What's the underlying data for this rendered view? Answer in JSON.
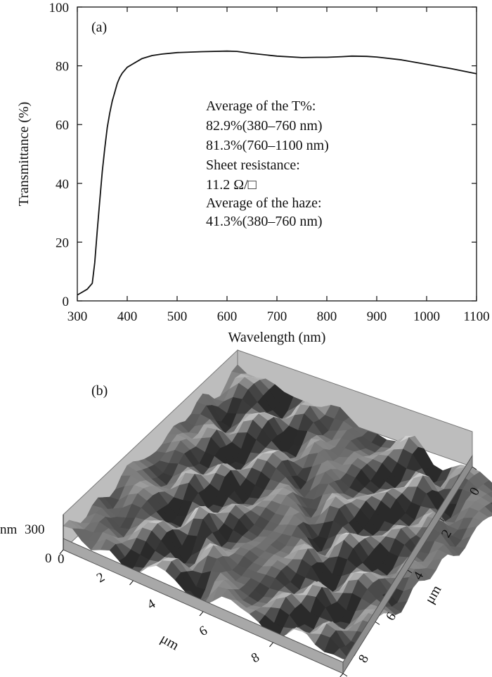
{
  "chart_data": [
    {
      "type": "line",
      "panel_label": "(a)",
      "xlabel": "Wavelength (nm)",
      "ylabel": "Transmittance (%)",
      "xlim": [
        300,
        1100
      ],
      "ylim": [
        0,
        100
      ],
      "x_ticks": [
        "300",
        "400",
        "500",
        "600",
        "700",
        "800",
        "900",
        "1000",
        "1100"
      ],
      "y_ticks": [
        "0",
        "20",
        "40",
        "60",
        "80",
        "100"
      ],
      "grid": false,
      "series": [
        {
          "x": [
            300,
            310,
            320,
            330,
            335,
            340,
            345,
            350,
            355,
            360,
            365,
            370,
            375,
            380,
            385,
            390,
            395,
            400,
            410,
            420,
            430,
            440,
            450,
            470,
            500,
            550,
            600,
            620,
            650,
            700,
            750,
            780,
            800,
            830,
            850,
            880,
            900,
            950,
            1000,
            1050,
            1100
          ],
          "y": [
            2,
            3,
            4,
            6,
            13,
            24,
            34,
            44,
            52,
            59,
            64,
            68,
            71,
            74,
            76,
            77.5,
            78.5,
            79.5,
            80.5,
            81.5,
            82.5,
            83,
            83.5,
            84,
            84.5,
            84.8,
            85,
            84.9,
            84.2,
            83.3,
            82.8,
            82.9,
            82.9,
            83.1,
            83.3,
            83.2,
            83,
            82,
            80.5,
            79,
            77.3
          ]
        }
      ],
      "annotations": [
        "Average of the T%:",
        "82.9%(380–760 nm)",
        "81.3%(760–1100 nm)",
        "Sheet resistance:",
        "11.2 Ω/□",
        "Average of the haze:",
        "41.3%(380–760 nm)"
      ]
    },
    {
      "type": "surface3d",
      "panel_label": "(b)",
      "z_label": "nm",
      "z_ticks": [
        "300",
        "0"
      ],
      "x_axis_label": "μm",
      "x_ticks": [
        "0",
        "2",
        "4",
        "6",
        "8"
      ],
      "y_axis_label": "μm",
      "y_ticks": [
        "0",
        "2",
        "4",
        "6",
        "8"
      ],
      "colors": {
        "surface_dark": "#2a2a2a",
        "surface_light": "#e6e6e6",
        "base": "#a8a8a8",
        "walls": "#bdbdbd"
      }
    }
  ]
}
